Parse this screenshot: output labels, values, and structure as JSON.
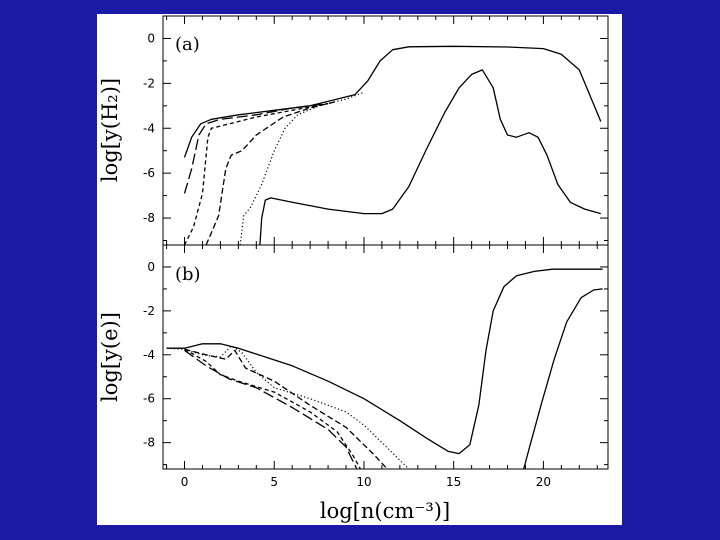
{
  "slide": {
    "background": "#1a1aa6"
  },
  "chart_data": [
    {
      "type": "line",
      "panel_label": "(a)",
      "ylabel": "log[y(H₂)]",
      "ylim": [
        -9.2,
        1.0
      ],
      "xlim": [
        -1.2,
        23.6
      ],
      "yticks": [
        0,
        -2,
        -4,
        -6,
        -8
      ],
      "series": [
        {
          "style": "solid",
          "points": [
            [
              0.0,
              -5.3
            ],
            [
              0.4,
              -4.4
            ],
            [
              0.9,
              -3.8
            ],
            [
              1.5,
              -3.6
            ],
            [
              3,
              -3.4
            ],
            [
              5,
              -3.2
            ],
            [
              7,
              -3.0
            ],
            [
              8.5,
              -2.7
            ],
            [
              9.5,
              -2.5
            ],
            [
              10.2,
              -1.9
            ],
            [
              10.9,
              -1.0
            ],
            [
              11.6,
              -0.5
            ],
            [
              12.5,
              -0.37
            ],
            [
              15,
              -0.35
            ],
            [
              18,
              -0.38
            ],
            [
              20,
              -0.45
            ],
            [
              21,
              -0.7
            ],
            [
              22,
              -1.4
            ],
            [
              23.2,
              -3.7
            ]
          ]
        },
        {
          "style": "long-dash",
          "points": [
            [
              0.0,
              -6.9
            ],
            [
              0.4,
              -5.8
            ],
            [
              0.8,
              -4.3
            ],
            [
              1.2,
              -3.8
            ],
            [
              2,
              -3.6
            ],
            [
              4,
              -3.4
            ],
            [
              6,
              -3.1
            ],
            [
              8,
              -2.9
            ]
          ]
        },
        {
          "style": "short-dash",
          "points": [
            [
              0.0,
              -9.2
            ],
            [
              0.5,
              -8.4
            ],
            [
              1.0,
              -6.9
            ],
            [
              1.3,
              -4.4
            ],
            [
              1.5,
              -4.0
            ],
            [
              2.5,
              -3.8
            ],
            [
              4,
              -3.5
            ],
            [
              6,
              -3.2
            ],
            [
              8,
              -2.9
            ]
          ]
        },
        {
          "style": "dash",
          "points": [
            [
              1.2,
              -9.2
            ],
            [
              1.9,
              -7.9
            ],
            [
              2.3,
              -5.8
            ],
            [
              2.6,
              -5.2
            ],
            [
              3.2,
              -5.0
            ],
            [
              4.0,
              -4.3
            ],
            [
              5.5,
              -3.5
            ],
            [
              7,
              -3.1
            ],
            [
              8.5,
              -2.8
            ]
          ]
        },
        {
          "style": "dotted",
          "points": [
            [
              3.1,
              -9.2
            ],
            [
              3.3,
              -7.9
            ],
            [
              3.7,
              -7.5
            ],
            [
              4.3,
              -6.5
            ],
            [
              5.0,
              -5.0
            ],
            [
              5.6,
              -4.0
            ],
            [
              6.3,
              -3.4
            ],
            [
              7.5,
              -3.0
            ],
            [
              9,
              -2.7
            ],
            [
              10,
              -2.4
            ]
          ]
        },
        {
          "style": "solid",
          "points": [
            [
              4.2,
              -9.2
            ],
            [
              4.3,
              -8.0
            ],
            [
              4.5,
              -7.2
            ],
            [
              4.8,
              -7.1
            ],
            [
              6,
              -7.3
            ],
            [
              8,
              -7.6
            ],
            [
              10,
              -7.8
            ],
            [
              11,
              -7.8
            ],
            [
              11.6,
              -7.6
            ],
            [
              12.5,
              -6.6
            ],
            [
              13.5,
              -4.9
            ],
            [
              14.5,
              -3.3
            ],
            [
              15.3,
              -2.2
            ],
            [
              16.0,
              -1.6
            ],
            [
              16.6,
              -1.4
            ],
            [
              17.2,
              -2.2
            ],
            [
              17.6,
              -3.6
            ],
            [
              18.0,
              -4.3
            ],
            [
              18.5,
              -4.4
            ],
            [
              19.2,
              -4.2
            ],
            [
              19.7,
              -4.4
            ],
            [
              20.2,
              -5.2
            ],
            [
              20.8,
              -6.5
            ],
            [
              21.5,
              -7.3
            ],
            [
              22.3,
              -7.6
            ],
            [
              23.2,
              -7.8
            ]
          ]
        }
      ]
    },
    {
      "type": "line",
      "panel_label": "(b)",
      "ylabel": "log[y(e)]",
      "xlabel": "log[n(cm⁻³)]",
      "ylim": [
        -9.2,
        1.0
      ],
      "xlim": [
        -1.2,
        23.6
      ],
      "xticks": [
        0,
        5,
        10,
        15,
        20
      ],
      "yticks": [
        0,
        -2,
        -4,
        -6,
        -8
      ],
      "series": [
        {
          "style": "solid",
          "points": [
            [
              -1,
              -3.7
            ],
            [
              0,
              -3.7
            ],
            [
              1,
              -3.5
            ],
            [
              2,
              -3.5
            ],
            [
              3,
              -3.7
            ],
            [
              4.5,
              -4.1
            ],
            [
              6,
              -4.5
            ],
            [
              8,
              -5.2
            ],
            [
              10,
              -6.0
            ],
            [
              12,
              -7.0
            ],
            [
              13.5,
              -7.8
            ],
            [
              14.7,
              -8.4
            ],
            [
              15.3,
              -8.5
            ],
            [
              15.9,
              -8.1
            ],
            [
              16.4,
              -6.3
            ],
            [
              16.8,
              -3.8
            ],
            [
              17.2,
              -2.0
            ],
            [
              17.8,
              -0.9
            ],
            [
              18.5,
              -0.4
            ],
            [
              19.5,
              -0.2
            ],
            [
              20.5,
              -0.1
            ],
            [
              23.3,
              -0.1
            ]
          ]
        },
        {
          "style": "dotted",
          "points": [
            [
              -1,
              -3.7
            ],
            [
              0,
              -3.75
            ],
            [
              1,
              -4.0
            ],
            [
              2,
              -4.1
            ],
            [
              2.6,
              -3.6
            ],
            [
              3.2,
              -3.9
            ],
            [
              4,
              -4.8
            ],
            [
              5,
              -5.5
            ],
            [
              7,
              -6.0
            ],
            [
              9,
              -6.6
            ],
            [
              10,
              -7.2
            ],
            [
              11.5,
              -8.4
            ],
            [
              12.5,
              -9.2
            ]
          ]
        },
        {
          "style": "dash",
          "points": [
            [
              0,
              -3.75
            ],
            [
              1.2,
              -4.0
            ],
            [
              2.3,
              -4.2
            ],
            [
              2.8,
              -3.8
            ],
            [
              3.4,
              -4.6
            ],
            [
              5,
              -5.2
            ],
            [
              7,
              -6.3
            ],
            [
              9,
              -7.3
            ],
            [
              10.5,
              -8.5
            ],
            [
              11.3,
              -9.2
            ]
          ]
        },
        {
          "style": "short-dash",
          "points": [
            [
              0,
              -3.75
            ],
            [
              1.2,
              -4.3
            ],
            [
              2,
              -4.9
            ],
            [
              3,
              -5.2
            ],
            [
              5,
              -5.7
            ],
            [
              7,
              -6.6
            ],
            [
              8.5,
              -7.5
            ],
            [
              9.4,
              -8.6
            ],
            [
              9.8,
              -9.2
            ]
          ]
        },
        {
          "style": "long-dash",
          "points": [
            [
              0,
              -3.8
            ],
            [
              1.2,
              -4.5
            ],
            [
              2.5,
              -5.1
            ],
            [
              4,
              -5.5
            ],
            [
              6,
              -6.4
            ],
            [
              8,
              -7.4
            ],
            [
              9,
              -8.2
            ],
            [
              9.6,
              -9.2
            ]
          ]
        },
        {
          "style": "solid",
          "points": [
            [
              18.9,
              -9.2
            ],
            [
              19.3,
              -8.0
            ],
            [
              19.9,
              -6.2
            ],
            [
              20.6,
              -4.2
            ],
            [
              21.3,
              -2.5
            ],
            [
              22.1,
              -1.4
            ],
            [
              22.8,
              -1.05
            ],
            [
              23.3,
              -1.0
            ]
          ]
        }
      ]
    }
  ]
}
